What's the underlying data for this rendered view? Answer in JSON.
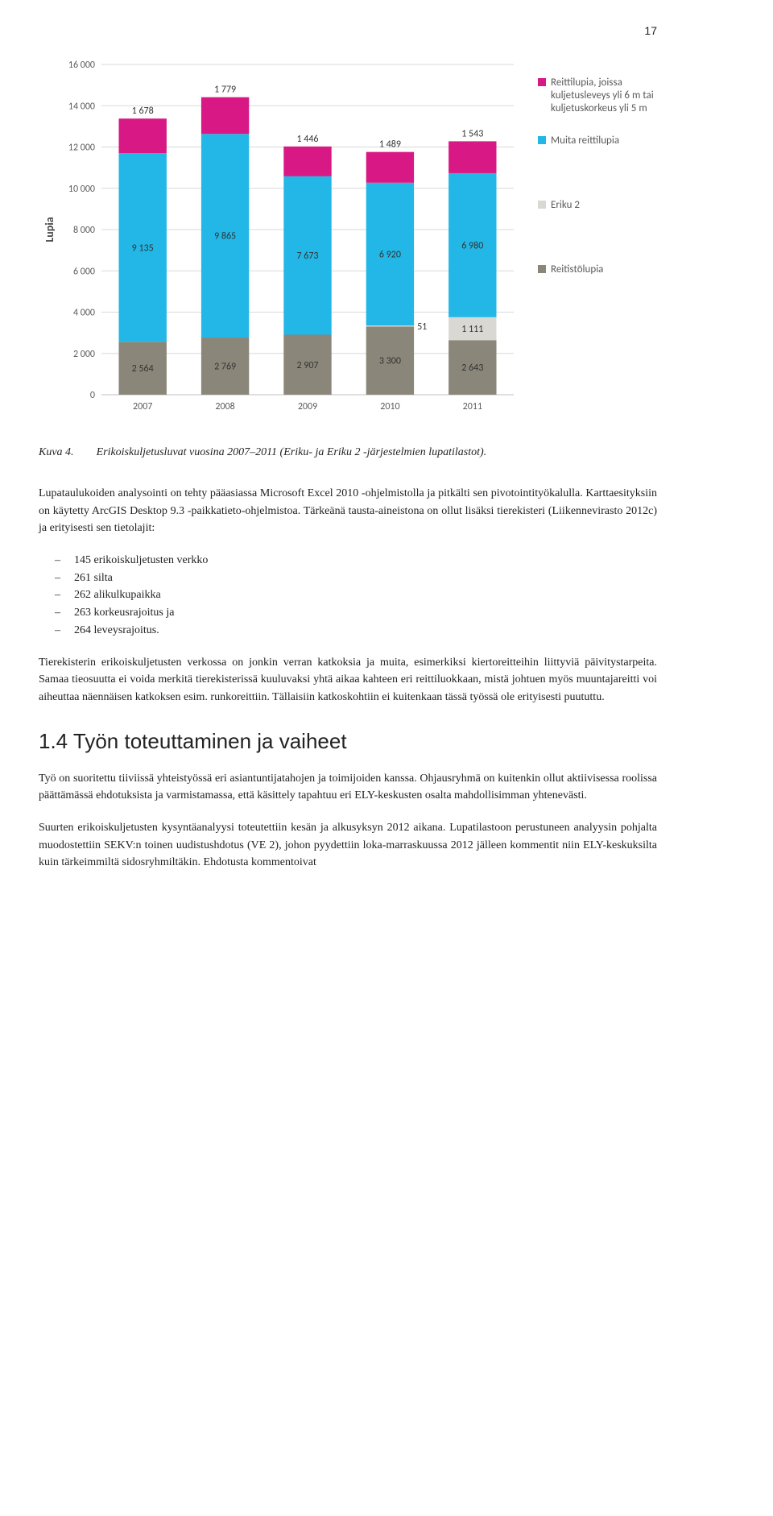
{
  "page_number": "17",
  "chart": {
    "type": "stacked-bar",
    "y_label": "Lupia",
    "y_max": 16000,
    "y_ticks": [
      0,
      2000,
      4000,
      6000,
      8000,
      10000,
      12000,
      14000,
      16000
    ],
    "y_tick_labels": [
      "0",
      "2 000",
      "4 000",
      "6 000",
      "8 000",
      "10 000",
      "12 000",
      "14 000",
      "16 000"
    ],
    "categories": [
      "2007",
      "2008",
      "2009",
      "2010",
      "2011"
    ],
    "series": [
      {
        "key": "reitistolupia",
        "label": "Reitistölupia",
        "color": "#8a8679",
        "values": [
          2564,
          2769,
          2907,
          3300,
          2643
        ]
      },
      {
        "key": "eriku2",
        "label": "Eriku 2",
        "color": "#d9d8d3",
        "values": [
          0,
          0,
          0,
          51,
          1111
        ]
      },
      {
        "key": "muita",
        "label": "Muita reittilupia",
        "color": "#22b7e6",
        "values": [
          9135,
          9865,
          7673,
          6920,
          6980
        ]
      },
      {
        "key": "reittilupia6m",
        "label": "Reittilupia, joissa kuljetusleveys yli 6 m tai kuljetuskorkeus yli 5 m",
        "color": "#d81884",
        "values": [
          1678,
          1779,
          1446,
          1489,
          1543
        ]
      }
    ],
    "bar_labels": {
      "2007": [
        "2 564",
        "9 135",
        "1 678"
      ],
      "2008": [
        "2 769",
        "9 865",
        "1 779"
      ],
      "2009": [
        "2 907",
        "7 673",
        "1 446"
      ],
      "2010": [
        "3 300",
        "51",
        "6 920",
        "1 489"
      ],
      "2011": [
        "2 643",
        "1 111",
        "6 980",
        "1 543"
      ]
    },
    "label_fontsize": 12,
    "axis_fontsize": 12,
    "gridline_color": "#d9d9d9",
    "axis_color": "#bfbfbf",
    "bar_width": 0.58
  },
  "caption": {
    "label": "Kuva 4.",
    "text": "Erikoiskuljetusluvat vuosina 2007–2011 (Eriku- ja Eriku 2 -järjestelmien lupatilastot)."
  },
  "para1": "Lupataulukoiden analysointi on tehty pääasiassa Microsoft Excel 2010 -ohjelmistolla ja pitkälti sen pivotointityökalulla. Karttaesityksiin on käytetty ArcGIS Desktop 9.3 -paikkatieto-ohjelmistoa. Tärkeänä tausta-aineistona on ollut lisäksi tierekisteri (Liikennevirasto 2012c) ja erityisesti sen tietolajit:",
  "list1": [
    "145 erikoiskuljetusten verkko",
    "261 silta",
    "262 alikulkupaikka",
    "263 korkeusrajoitus ja",
    "264 leveysrajoitus."
  ],
  "para2": "Tierekisterin erikoiskuljetusten verkossa on jonkin verran katkoksia ja muita, esimerkiksi kiertoreitteihin liittyviä päivitystarpeita. Samaa tieosuutta ei voida merkitä tierekisterissä kuuluvaksi yhtä aikaa kahteen eri reittiluokkaan, mistä johtuen myös muuntajareitti voi aiheuttaa näennäisen katkoksen esim. runkoreittiin. Tällaisiin katkoskohtiin ei kuitenkaan tässä työssä ole erityisesti puututtu.",
  "heading": "1.4  Työn toteuttaminen ja vaiheet",
  "para3": "Työ on suoritettu tiiviissä yhteistyössä eri asiantuntijatahojen ja toimijoiden kanssa. Ohjausryhmä on kuitenkin ollut aktiivisessa roolissa päättämässä ehdotuksista ja varmistamassa, että käsittely tapahtuu eri ELY-keskusten osalta mahdollisimman yhtenevästi.",
  "para4": "Suurten erikoiskuljetusten kysyntäanalyysi toteutettiin kesän ja alkusyksyn 2012 aikana. Lupatilastoon perustuneen analyysin pohjalta muodostettiin SEKV:n toinen uudistushdotus (VE 2), johon pyydettiin loka-marraskuussa 2012 jälleen kommentit niin ELY-keskuksilta kuin tärkeimmiltä sidosryhmiltäkin. Ehdotusta kommentoivat"
}
